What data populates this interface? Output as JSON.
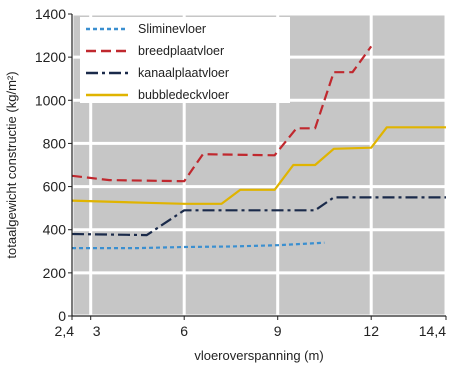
{
  "chart_data": {
    "type": "line",
    "xlabel": "vloeroverspanning (m)",
    "ylabel": "totaalgewicht constructie (kg/m²)",
    "xlim": [
      2.4,
      14.4
    ],
    "ylim": [
      0,
      1400
    ],
    "x_ticks": [
      2.4,
      3,
      6,
      9,
      12,
      14.4
    ],
    "x_tick_labels": [
      "2,4",
      "3",
      "6",
      "9",
      "12",
      "14,4"
    ],
    "y_ticks": [
      0,
      200,
      400,
      600,
      800,
      1000,
      1200,
      1400
    ],
    "y_tick_labels": [
      "0",
      "200",
      "400",
      "600",
      "800",
      "1000",
      "1200",
      "1400"
    ],
    "grid": true,
    "legend_position": "top-left",
    "series": [
      {
        "name": "Sliminevloer",
        "color": "#3a8fd0",
        "dash": "short-dash",
        "points": [
          [
            2.4,
            315
          ],
          [
            4.5,
            315
          ],
          [
            6,
            320
          ],
          [
            7.5,
            322
          ],
          [
            9,
            328
          ],
          [
            10.5,
            340
          ]
        ]
      },
      {
        "name": "breedplaatvloer",
        "color": "#c0282e",
        "dash": "dash",
        "points": [
          [
            2.4,
            650
          ],
          [
            3.6,
            630
          ],
          [
            6,
            625
          ],
          [
            6.6,
            750
          ],
          [
            8.9,
            745
          ],
          [
            9.6,
            870
          ],
          [
            10.2,
            870
          ],
          [
            10.8,
            1130
          ],
          [
            11.4,
            1130
          ],
          [
            12,
            1250
          ]
        ]
      },
      {
        "name": "kanaalplaatvloer",
        "color": "#1a2a4a",
        "dash": "dash-dot",
        "points": [
          [
            2.4,
            380
          ],
          [
            4.8,
            375
          ],
          [
            6,
            490
          ],
          [
            7.5,
            490
          ],
          [
            8.9,
            490
          ],
          [
            10.2,
            490
          ],
          [
            10.8,
            550
          ],
          [
            14.4,
            550
          ]
        ]
      },
      {
        "name": "bubbledeckvloer",
        "color": "#e0b400",
        "dash": "solid",
        "points": [
          [
            2.4,
            535
          ],
          [
            4.8,
            525
          ],
          [
            6,
            520
          ],
          [
            7.2,
            520
          ],
          [
            7.8,
            585
          ],
          [
            8.9,
            585
          ],
          [
            9.5,
            700
          ],
          [
            10.2,
            700
          ],
          [
            10.8,
            775
          ],
          [
            12,
            780
          ],
          [
            12.5,
            875
          ],
          [
            14.4,
            875
          ]
        ]
      }
    ]
  }
}
